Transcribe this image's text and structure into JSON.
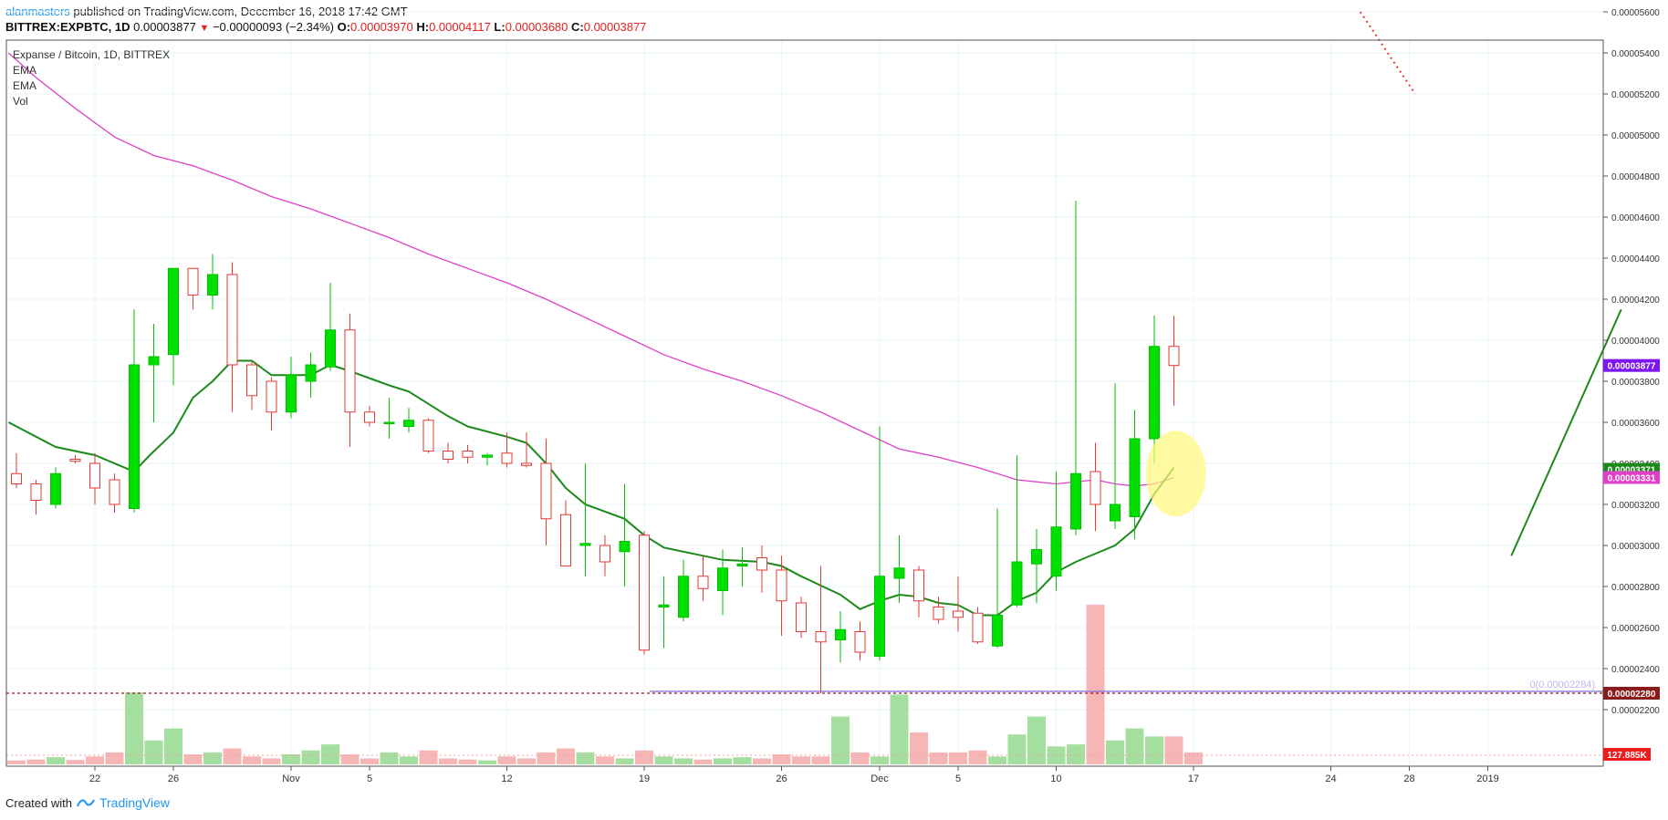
{
  "header": {
    "user": "alanmasters",
    "published": " published on TradingView.com, December 16, 2018 17:42 GMT",
    "symbol": "BITTREX:EXPBTC, 1D",
    "last": "0.00003877",
    "change": "−0.00000093 (−2.34%)",
    "o_label": "O:",
    "o": "0.00003970",
    "h_label": "H:",
    "h": "0.00004117",
    "l_label": "L:",
    "l": "0.00003680",
    "c_label": "C:",
    "c": "0.00003877"
  },
  "footer": {
    "created": "Created with",
    "brand": "TradingView"
  },
  "colors": {
    "up": "#00e000",
    "down": "#e53935",
    "ema_short": "#1b8a1b",
    "ema_long": "#e040c8",
    "vol_up": "#a5dfa0",
    "vol_down": "#f7b6b6",
    "grid": "#e6f7f6",
    "last_price": "#7c16f5"
  },
  "chart_data": {
    "type": "candlestick",
    "title": "Expanse / Bitcoin, 1D, BITTREX",
    "legend": [
      "EMA",
      "EMA",
      "Vol"
    ],
    "ylim": [
      2.13e-05,
      5.7e-05
    ],
    "y_ticks": [
      "0.00005600",
      "0.00005400",
      "0.00005200",
      "0.00005000",
      "0.00004800",
      "0.00004600",
      "0.00004400",
      "0.00004200",
      "0.00004000",
      "0.00003800",
      "0.00003600",
      "0.00003400",
      "0.00003200",
      "0.00003000",
      "0.00002800",
      "0.00002600",
      "0.00002400",
      "0.00002200"
    ],
    "x_ticks": [
      {
        "label": "22",
        "i": 4
      },
      {
        "label": "26",
        "i": 8
      },
      {
        "label": "Nov",
        "i": 14
      },
      {
        "label": "5",
        "i": 18
      },
      {
        "label": "12",
        "i": 25
      },
      {
        "label": "19",
        "i": 32
      },
      {
        "label": "26",
        "i": 39
      },
      {
        "label": "Dec",
        "i": 44
      },
      {
        "label": "5",
        "i": 48
      },
      {
        "label": "10",
        "i": 53
      },
      {
        "label": "17",
        "i": 60
      },
      {
        "label": "24",
        "i": 67
      },
      {
        "label": "28",
        "i": 71
      },
      {
        "label": "2019",
        "i": 75
      }
    ],
    "candles": [
      {
        "o": 3.35,
        "h": 3.45,
        "l": 3.28,
        "c": 3.3
      },
      {
        "o": 3.3,
        "h": 3.32,
        "l": 3.15,
        "c": 3.22
      },
      {
        "o": 3.2,
        "h": 3.38,
        "l": 3.18,
        "c": 3.35
      },
      {
        "o": 3.42,
        "h": 3.44,
        "l": 3.4,
        "c": 3.41
      },
      {
        "o": 3.4,
        "h": 3.45,
        "l": 3.2,
        "c": 3.28
      },
      {
        "o": 3.32,
        "h": 3.35,
        "l": 3.16,
        "c": 3.2
      },
      {
        "o": 3.18,
        "h": 4.15,
        "l": 3.16,
        "c": 3.88
      },
      {
        "o": 3.88,
        "h": 4.08,
        "l": 3.6,
        "c": 3.92
      },
      {
        "o": 3.93,
        "h": 4.35,
        "l": 3.78,
        "c": 4.35
      },
      {
        "o": 4.35,
        "h": 4.35,
        "l": 4.15,
        "c": 4.22
      },
      {
        "o": 4.22,
        "h": 4.42,
        "l": 4.15,
        "c": 4.32
      },
      {
        "o": 4.32,
        "h": 4.38,
        "l": 3.65,
        "c": 3.88
      },
      {
        "o": 3.88,
        "h": 3.9,
        "l": 3.66,
        "c": 3.73
      },
      {
        "o": 3.8,
        "h": 3.82,
        "l": 3.56,
        "c": 3.65
      },
      {
        "o": 3.65,
        "h": 3.92,
        "l": 3.62,
        "c": 3.83
      },
      {
        "o": 3.8,
        "h": 3.94,
        "l": 3.72,
        "c": 3.88
      },
      {
        "o": 3.87,
        "h": 4.28,
        "l": 3.85,
        "c": 4.05
      },
      {
        "o": 4.05,
        "h": 4.13,
        "l": 3.48,
        "c": 3.65
      },
      {
        "o": 3.65,
        "h": 3.68,
        "l": 3.58,
        "c": 3.6
      },
      {
        "o": 3.6,
        "h": 3.72,
        "l": 3.52,
        "c": 3.6
      },
      {
        "o": 3.58,
        "h": 3.67,
        "l": 3.55,
        "c": 3.61
      },
      {
        "o": 3.61,
        "h": 3.62,
        "l": 3.45,
        "c": 3.46
      },
      {
        "o": 3.46,
        "h": 3.5,
        "l": 3.4,
        "c": 3.42
      },
      {
        "o": 3.46,
        "h": 3.49,
        "l": 3.4,
        "c": 3.43
      },
      {
        "o": 3.43,
        "h": 3.45,
        "l": 3.39,
        "c": 3.44
      },
      {
        "o": 3.45,
        "h": 3.55,
        "l": 3.38,
        "c": 3.4
      },
      {
        "o": 3.4,
        "h": 3.55,
        "l": 3.38,
        "c": 3.39
      },
      {
        "o": 3.4,
        "h": 3.52,
        "l": 3.0,
        "c": 3.13
      },
      {
        "o": 3.15,
        "h": 3.22,
        "l": 2.9,
        "c": 2.9
      },
      {
        "o": 3.0,
        "h": 3.4,
        "l": 2.85,
        "c": 3.01
      },
      {
        "o": 3.0,
        "h": 3.05,
        "l": 2.85,
        "c": 2.92
      },
      {
        "o": 2.97,
        "h": 3.3,
        "l": 2.8,
        "c": 3.02
      },
      {
        "o": 3.05,
        "h": 3.07,
        "l": 2.47,
        "c": 2.49
      },
      {
        "o": 2.7,
        "h": 2.85,
        "l": 2.5,
        "c": 2.71
      },
      {
        "o": 2.65,
        "h": 2.93,
        "l": 2.63,
        "c": 2.85
      },
      {
        "o": 2.85,
        "h": 2.95,
        "l": 2.73,
        "c": 2.79
      },
      {
        "o": 2.78,
        "h": 2.98,
        "l": 2.66,
        "c": 2.89
      },
      {
        "o": 2.9,
        "h": 2.99,
        "l": 2.8,
        "c": 2.91
      },
      {
        "o": 2.94,
        "h": 3.0,
        "l": 2.77,
        "c": 2.88
      },
      {
        "o": 2.88,
        "h": 2.95,
        "l": 2.56,
        "c": 2.73
      },
      {
        "o": 2.72,
        "h": 2.75,
        "l": 2.55,
        "c": 2.58
      },
      {
        "o": 2.58,
        "h": 2.9,
        "l": 2.28,
        "c": 2.53
      },
      {
        "o": 2.54,
        "h": 2.68,
        "l": 2.43,
        "c": 2.59
      },
      {
        "o": 2.58,
        "h": 2.63,
        "l": 2.44,
        "c": 2.48
      },
      {
        "o": 2.46,
        "h": 3.58,
        "l": 2.44,
        "c": 2.85
      },
      {
        "o": 2.84,
        "h": 3.05,
        "l": 2.72,
        "c": 2.89
      },
      {
        "o": 2.88,
        "h": 2.9,
        "l": 2.65,
        "c": 2.73
      },
      {
        "o": 2.7,
        "h": 2.75,
        "l": 2.62,
        "c": 2.64
      },
      {
        "o": 2.68,
        "h": 2.85,
        "l": 2.58,
        "c": 2.65
      },
      {
        "o": 2.67,
        "h": 2.7,
        "l": 2.52,
        "c": 2.53
      },
      {
        "o": 2.51,
        "h": 3.18,
        "l": 2.5,
        "c": 2.66
      },
      {
        "o": 2.71,
        "h": 3.44,
        "l": 2.7,
        "c": 2.92
      },
      {
        "o": 2.91,
        "h": 3.08,
        "l": 2.72,
        "c": 2.98
      },
      {
        "o": 2.85,
        "h": 3.36,
        "l": 2.78,
        "c": 3.09
      },
      {
        "o": 3.08,
        "h": 4.68,
        "l": 3.05,
        "c": 3.35
      },
      {
        "o": 3.36,
        "h": 3.5,
        "l": 3.07,
        "c": 3.2
      },
      {
        "o": 3.12,
        "h": 3.79,
        "l": 3.08,
        "c": 3.2
      },
      {
        "o": 3.14,
        "h": 3.66,
        "l": 3.03,
        "c": 3.52
      },
      {
        "o": 3.52,
        "h": 4.12,
        "l": 3.4,
        "c": 3.97
      },
      {
        "o": 3.97,
        "h": 4.12,
        "l": 3.68,
        "c": 3.877
      }
    ],
    "volume": [
      1.0,
      1.2,
      1.8,
      1.1,
      2.0,
      3.0,
      18.0,
      6.0,
      9.0,
      2.5,
      3.0,
      4.0,
      2.0,
      1.5,
      2.5,
      3.5,
      5.0,
      2.5,
      1.5,
      3.0,
      2.0,
      3.5,
      1.5,
      1.2,
      1.0,
      2.0,
      1.5,
      3.0,
      4.0,
      3.0,
      2.0,
      1.5,
      3.5,
      2.0,
      1.5,
      1.2,
      1.5,
      1.8,
      1.5,
      2.5,
      2.0,
      2.0,
      12.0,
      3.0,
      2.0,
      17.5,
      8.0,
      3.0,
      3.0,
      3.5,
      2.0,
      7.5,
      12.0,
      4.5,
      5.0,
      40.0,
      6.0,
      9.0,
      7.0,
      7.0,
      3.0
    ],
    "ema_short": [
      {
        "i": -0.4,
        "v": 3.6
      },
      {
        "i": 2,
        "v": 3.48
      },
      {
        "i": 4,
        "v": 3.44
      },
      {
        "i": 6,
        "v": 3.36
      },
      {
        "i": 6.8,
        "v": 3.44
      },
      {
        "i": 8,
        "v": 3.55
      },
      {
        "i": 9,
        "v": 3.72
      },
      {
        "i": 10,
        "v": 3.8
      },
      {
        "i": 11,
        "v": 3.9
      },
      {
        "i": 12,
        "v": 3.9
      },
      {
        "i": 13,
        "v": 3.83
      },
      {
        "i": 15,
        "v": 3.83
      },
      {
        "i": 16,
        "v": 3.88
      },
      {
        "i": 17,
        "v": 3.85
      },
      {
        "i": 19,
        "v": 3.78
      },
      {
        "i": 20,
        "v": 3.75
      },
      {
        "i": 22,
        "v": 3.63
      },
      {
        "i": 23,
        "v": 3.58
      },
      {
        "i": 25,
        "v": 3.53
      },
      {
        "i": 26,
        "v": 3.5
      },
      {
        "i": 27,
        "v": 3.4
      },
      {
        "i": 28,
        "v": 3.28
      },
      {
        "i": 29,
        "v": 3.2
      },
      {
        "i": 31,
        "v": 3.13
      },
      {
        "i": 32,
        "v": 3.05
      },
      {
        "i": 33,
        "v": 2.99
      },
      {
        "i": 35,
        "v": 2.95
      },
      {
        "i": 36,
        "v": 2.93
      },
      {
        "i": 38,
        "v": 2.92
      },
      {
        "i": 39,
        "v": 2.9
      },
      {
        "i": 40,
        "v": 2.85
      },
      {
        "i": 42,
        "v": 2.76
      },
      {
        "i": 43,
        "v": 2.69
      },
      {
        "i": 44,
        "v": 2.73
      },
      {
        "i": 45,
        "v": 2.76
      },
      {
        "i": 46,
        "v": 2.75
      },
      {
        "i": 47,
        "v": 2.72
      },
      {
        "i": 48,
        "v": 2.71
      },
      {
        "i": 49,
        "v": 2.66
      },
      {
        "i": 50,
        "v": 2.66
      },
      {
        "i": 51,
        "v": 2.73
      },
      {
        "i": 52,
        "v": 2.77
      },
      {
        "i": 53,
        "v": 2.87
      },
      {
        "i": 54,
        "v": 2.92
      },
      {
        "i": 55,
        "v": 2.96
      },
      {
        "i": 56,
        "v": 3.0
      },
      {
        "i": 57,
        "v": 3.08
      },
      {
        "i": 58,
        "v": 3.25
      },
      {
        "i": 59,
        "v": 3.38
      }
    ],
    "ema_long": [
      {
        "i": -0.4,
        "v": 5.4
      },
      {
        "i": 1,
        "v": 5.28
      },
      {
        "i": 3,
        "v": 5.13
      },
      {
        "i": 5,
        "v": 4.99
      },
      {
        "i": 7,
        "v": 4.9
      },
      {
        "i": 9,
        "v": 4.85
      },
      {
        "i": 11,
        "v": 4.78
      },
      {
        "i": 13,
        "v": 4.7
      },
      {
        "i": 15,
        "v": 4.64
      },
      {
        "i": 17,
        "v": 4.57
      },
      {
        "i": 19,
        "v": 4.5
      },
      {
        "i": 21,
        "v": 4.42
      },
      {
        "i": 23,
        "v": 4.35
      },
      {
        "i": 25,
        "v": 4.28
      },
      {
        "i": 27,
        "v": 4.2
      },
      {
        "i": 29,
        "v": 4.11
      },
      {
        "i": 31,
        "v": 4.02
      },
      {
        "i": 33,
        "v": 3.93
      },
      {
        "i": 35,
        "v": 3.86
      },
      {
        "i": 37,
        "v": 3.8
      },
      {
        "i": 39,
        "v": 3.73
      },
      {
        "i": 41,
        "v": 3.65
      },
      {
        "i": 43,
        "v": 3.56
      },
      {
        "i": 45,
        "v": 3.47
      },
      {
        "i": 47,
        "v": 3.43
      },
      {
        "i": 49,
        "v": 3.38
      },
      {
        "i": 51,
        "v": 3.32
      },
      {
        "i": 53,
        "v": 3.3
      },
      {
        "i": 55,
        "v": 3.32
      },
      {
        "i": 56,
        "v": 3.3
      },
      {
        "i": 57,
        "v": 3.29
      },
      {
        "i": 58,
        "v": 3.3
      },
      {
        "i": 59,
        "v": 3.33
      }
    ],
    "support_level": 2.28,
    "support_text": "0(0.00002284)",
    "price_labels": [
      {
        "text": "0.00003877",
        "v": 3.877,
        "color": "#7c16f5"
      },
      {
        "text": "0.00003371",
        "v": 3.371,
        "color": "#1b8a1b"
      },
      {
        "text": "0.00003331",
        "v": 3.331,
        "color": "#e040c8"
      },
      {
        "text": "0.00002280",
        "v": 2.28,
        "color": "#8b1a1a"
      }
    ],
    "volume_label": "127.885K",
    "trend_lines": [
      {
        "style": "solid",
        "color": "#1b8a1b",
        "from": {
          "i": 76.2,
          "v": 2.95
        },
        "to": {
          "i": 81.8,
          "v": 4.15
        }
      },
      {
        "style": "dotted",
        "color": "#e53935",
        "from": {
          "i": 68.5,
          "v": 5.6
        },
        "to": {
          "i": 71.3,
          "v": 5.2
        }
      }
    ],
    "highlight": {
      "i": 59.1,
      "v": 3.35
    }
  }
}
